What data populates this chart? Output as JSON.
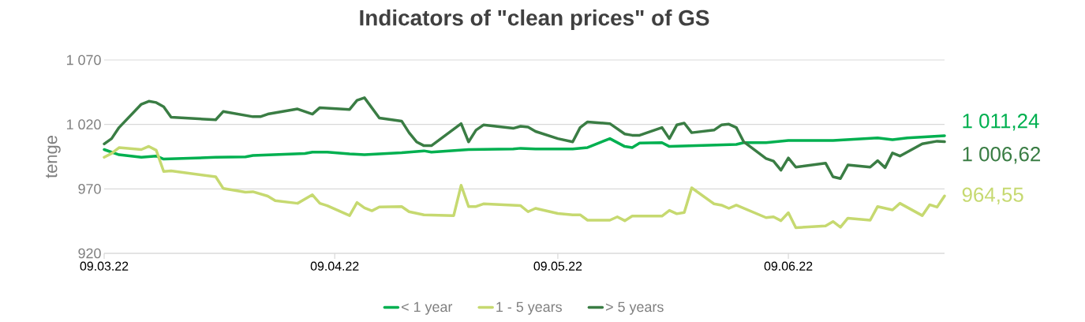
{
  "chart_data": {
    "type": "line",
    "title": "Indicators of \"clean prices\" of GS",
    "ylabel": "tenge",
    "xlim": [
      "2022-03-09",
      "2022-06-30"
    ],
    "ylim": [
      920,
      1070
    ],
    "xticks": [
      {
        "value": "2022-03-09",
        "label": "09.03.22"
      },
      {
        "value": "2022-04-09",
        "label": "09.04.22"
      },
      {
        "value": "2022-05-09",
        "label": "09.05.22"
      },
      {
        "value": "2022-06-09",
        "label": "09.06.22"
      }
    ],
    "yticks": [
      {
        "value": 920,
        "label": "920"
      },
      {
        "value": 970,
        "label": "970"
      },
      {
        "value": 1020,
        "label": "1 020"
      },
      {
        "value": 1070,
        "label": "1 070"
      }
    ],
    "grid": "y",
    "legend": "bottom",
    "marker": "none",
    "line_style": "solid",
    "series": [
      {
        "name": "< 1 year",
        "color": "#00b050",
        "x": [
          "2022-03-09",
          "2022-03-11",
          "2022-03-14",
          "2022-03-16",
          "2022-03-17",
          "2022-03-24",
          "2022-03-28",
          "2022-03-29",
          "2022-04-05",
          "2022-04-06",
          "2022-04-08",
          "2022-04-11",
          "2022-04-13",
          "2022-04-18",
          "2022-04-21",
          "2022-04-22",
          "2022-04-27",
          "2022-05-03",
          "2022-05-04",
          "2022-05-06",
          "2022-05-09",
          "2022-05-11",
          "2022-05-13",
          "2022-05-16",
          "2022-05-18",
          "2022-05-19",
          "2022-05-20",
          "2022-05-23",
          "2022-05-24",
          "2022-06-02",
          "2022-06-03",
          "2022-06-06",
          "2022-06-09",
          "2022-06-15",
          "2022-06-21",
          "2022-06-23",
          "2022-06-25",
          "2022-06-30"
        ],
        "values": [
          1000.5,
          996.5,
          994.5,
          995.5,
          993.1,
          994.5,
          994.9,
          995.9,
          997.5,
          998.5,
          998.5,
          997.1,
          996.5,
          998.1,
          999.5,
          998.5,
          1000.5,
          1000.9,
          1001.5,
          1000.9,
          1000.9,
          1000.9,
          1002.1,
          1009,
          1002.9,
          1002.1,
          1005.5,
          1005.9,
          1002.9,
          1004.5,
          1005.9,
          1005.9,
          1007.5,
          1007.5,
          1009.6,
          1008.2,
          1009.6,
          1011.24
        ]
      },
      {
        "name": "1 - 5 years",
        "color": "#c6d970",
        "x": [
          "2022-03-09",
          "2022-03-10",
          "2022-03-11",
          "2022-03-14",
          "2022-03-15",
          "2022-03-16",
          "2022-03-17",
          "2022-03-18",
          "2022-03-24",
          "2022-03-25",
          "2022-03-28",
          "2022-03-29",
          "2022-03-31",
          "2022-04-01",
          "2022-04-04",
          "2022-04-06",
          "2022-04-07",
          "2022-04-08",
          "2022-04-11",
          "2022-04-12",
          "2022-04-13",
          "2022-04-14",
          "2022-04-15",
          "2022-04-18",
          "2022-04-19",
          "2022-04-21",
          "2022-04-25",
          "2022-04-26",
          "2022-04-27",
          "2022-04-28",
          "2022-04-29",
          "2022-05-04",
          "2022-05-05",
          "2022-05-06",
          "2022-05-09",
          "2022-05-11",
          "2022-05-12",
          "2022-05-13",
          "2022-05-16",
          "2022-05-17",
          "2022-05-18",
          "2022-05-19",
          "2022-05-23",
          "2022-05-24",
          "2022-05-25",
          "2022-05-26",
          "2022-05-27",
          "2022-05-30",
          "2022-05-31",
          "2022-06-01",
          "2022-06-02",
          "2022-06-06",
          "2022-06-07",
          "2022-06-08",
          "2022-06-09",
          "2022-06-10",
          "2022-06-14",
          "2022-06-15",
          "2022-06-16",
          "2022-06-17",
          "2022-06-20",
          "2022-06-21",
          "2022-06-23",
          "2022-06-24",
          "2022-06-27",
          "2022-06-28",
          "2022-06-29",
          "2022-06-30"
        ],
        "values": [
          994.5,
          997.5,
          1002,
          1000.5,
          1003,
          1000,
          983.5,
          984,
          979.4,
          970.4,
          967.4,
          967.8,
          964.4,
          960.8,
          958.8,
          965.4,
          958.8,
          957,
          949.3,
          959.4,
          955.3,
          953,
          956,
          956.3,
          952.3,
          949.9,
          949.3,
          972.8,
          956.3,
          956.3,
          958.4,
          957,
          952.3,
          954.9,
          950.9,
          949.9,
          949.9,
          945.7,
          945.7,
          948.3,
          945.3,
          948.9,
          948.9,
          953.3,
          950.7,
          951.7,
          970.8,
          958.4,
          957.4,
          954.9,
          957.4,
          947.7,
          948.3,
          945.3,
          951.5,
          939.9,
          941.3,
          944.7,
          940.3,
          947.3,
          945.7,
          956.3,
          953.7,
          958.8,
          949.3,
          957.7,
          955.9,
          964.55
        ]
      },
      {
        "name": "> 5 years",
        "color": "#3a7d44",
        "x": [
          "2022-03-09",
          "2022-03-10",
          "2022-03-11",
          "2022-03-14",
          "2022-03-15",
          "2022-03-16",
          "2022-03-17",
          "2022-03-18",
          "2022-03-24",
          "2022-03-25",
          "2022-03-29",
          "2022-03-30",
          "2022-03-31",
          "2022-04-04",
          "2022-04-06",
          "2022-04-07",
          "2022-04-11",
          "2022-04-12",
          "2022-04-13",
          "2022-04-15",
          "2022-04-18",
          "2022-04-19",
          "2022-04-20",
          "2022-04-21",
          "2022-04-22",
          "2022-04-26",
          "2022-04-27",
          "2022-04-28",
          "2022-04-29",
          "2022-05-03",
          "2022-05-04",
          "2022-05-05",
          "2022-05-06",
          "2022-05-09",
          "2022-05-11",
          "2022-05-12",
          "2022-05-13",
          "2022-05-16",
          "2022-05-18",
          "2022-05-19",
          "2022-05-20",
          "2022-05-23",
          "2022-05-24",
          "2022-05-25",
          "2022-05-26",
          "2022-05-27",
          "2022-05-30",
          "2022-05-31",
          "2022-06-01",
          "2022-06-02",
          "2022-06-03",
          "2022-06-06",
          "2022-06-07",
          "2022-06-08",
          "2022-06-09",
          "2022-06-10",
          "2022-06-14",
          "2022-06-15",
          "2022-06-16",
          "2022-06-17",
          "2022-06-20",
          "2022-06-21",
          "2022-06-22",
          "2022-06-23",
          "2022-06-24",
          "2022-06-27",
          "2022-06-29",
          "2022-06-30"
        ],
        "values": [
          1004.9,
          1009,
          1017.6,
          1035.7,
          1038,
          1037,
          1033.7,
          1025.6,
          1023.6,
          1030,
          1026,
          1026,
          1028,
          1032,
          1028,
          1033,
          1031.6,
          1038.7,
          1040.7,
          1025,
          1022.6,
          1013.6,
          1006.5,
          1003.5,
          1003.5,
          1020.6,
          1006.5,
          1015.6,
          1019.6,
          1017,
          1018.6,
          1018,
          1014.6,
          1009,
          1006.5,
          1017.6,
          1022,
          1020.6,
          1012.6,
          1011.6,
          1011.6,
          1017.6,
          1009,
          1019.6,
          1021,
          1013.6,
          1015.6,
          1019.6,
          1020.2,
          1017.6,
          1006.5,
          993.5,
          991.5,
          984.5,
          994,
          986.9,
          990,
          979.4,
          978,
          988.5,
          986.9,
          991.9,
          986.5,
          997.9,
          995.5,
          1004.9,
          1007,
          1006.62
        ]
      }
    ],
    "annotations": [
      {
        "text": "1 011,24",
        "x": "2022-06-30",
        "y": 1011.24
      },
      {
        "text": "1 006,62",
        "x": "2022-06-30",
        "y": 1006.62
      },
      {
        "text": "964,55",
        "x": "2022-06-30",
        "y": 964.55
      }
    ]
  }
}
